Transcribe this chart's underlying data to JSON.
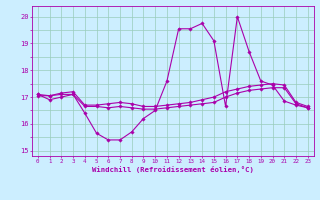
{
  "xlabel": "Windchill (Refroidissement éolien,°C)",
  "background_color": "#cceeff",
  "grid_color": "#99ccbb",
  "line_color": "#aa00aa",
  "x_hours": [
    0,
    1,
    2,
    3,
    4,
    5,
    6,
    7,
    8,
    9,
    10,
    11,
    12,
    13,
    14,
    15,
    16,
    17,
    18,
    19,
    20,
    21,
    22,
    23
  ],
  "series1": [
    17.1,
    16.9,
    17.0,
    17.1,
    16.4,
    15.65,
    15.4,
    15.4,
    15.7,
    16.2,
    16.5,
    17.6,
    19.55,
    19.55,
    19.75,
    19.1,
    16.65,
    20.0,
    18.7,
    17.6,
    17.45,
    16.85,
    16.7,
    16.6
  ],
  "series2": [
    17.05,
    17.05,
    17.1,
    17.1,
    16.65,
    16.65,
    16.6,
    16.65,
    16.6,
    16.55,
    16.55,
    16.6,
    16.65,
    16.7,
    16.75,
    16.8,
    17.0,
    17.15,
    17.25,
    17.3,
    17.35,
    17.35,
    16.75,
    16.6
  ],
  "series3": [
    17.1,
    17.05,
    17.15,
    17.2,
    16.7,
    16.7,
    16.75,
    16.8,
    16.75,
    16.65,
    16.65,
    16.7,
    16.75,
    16.8,
    16.9,
    17.0,
    17.2,
    17.3,
    17.4,
    17.45,
    17.5,
    17.45,
    16.8,
    16.65
  ],
  "ylim": [
    14.8,
    20.4
  ],
  "xlim": [
    -0.5,
    23.5
  ],
  "yticks": [
    15,
    16,
    17,
    18,
    19,
    20
  ],
  "figsize": [
    3.2,
    2.0
  ],
  "dpi": 100
}
